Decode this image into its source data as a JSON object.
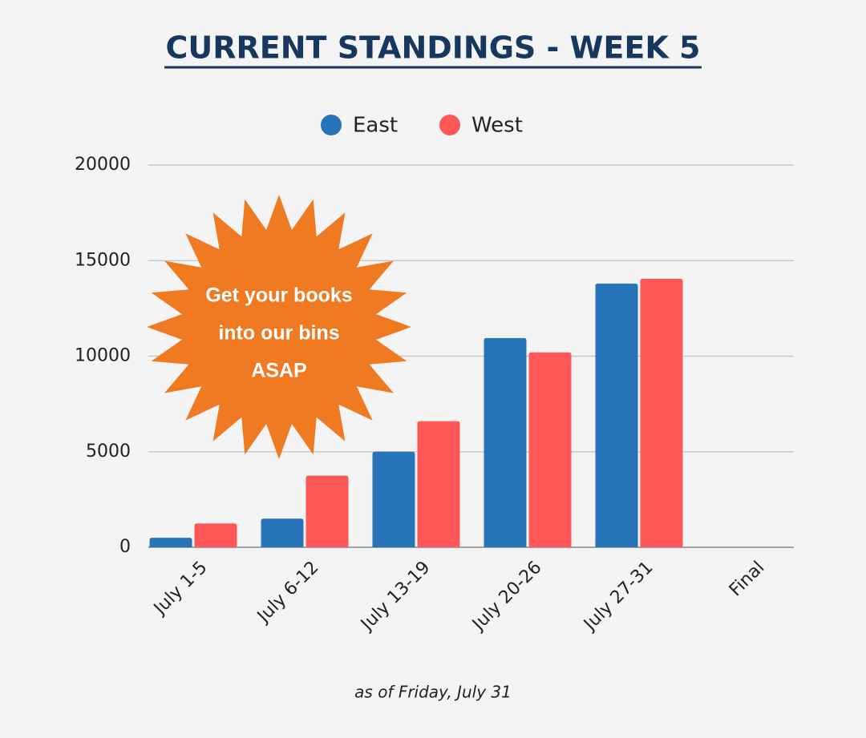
{
  "chart_data": {
    "type": "bar",
    "title": "CURRENT STANDINGS - WEEK 5",
    "categories": [
      "July 1-5",
      "July 6-12",
      "July 13-19",
      "July 20-26",
      "July 27-31",
      "Final"
    ],
    "series": [
      {
        "name": "East",
        "color": "#2874b8",
        "values": [
          500,
          1500,
          5000,
          10950,
          13800,
          null
        ]
      },
      {
        "name": "West",
        "color": "#fe5757",
        "values": [
          1250,
          3750,
          6600,
          10200,
          14050,
          null
        ]
      }
    ],
    "ylim": [
      0,
      20000
    ],
    "yticks": [
      0,
      5000,
      10000,
      15000,
      20000
    ],
    "grid": true,
    "annotation": [
      "Get your books",
      "into our bins",
      "ASAP"
    ],
    "footnote": "as of Friday, July 31"
  }
}
